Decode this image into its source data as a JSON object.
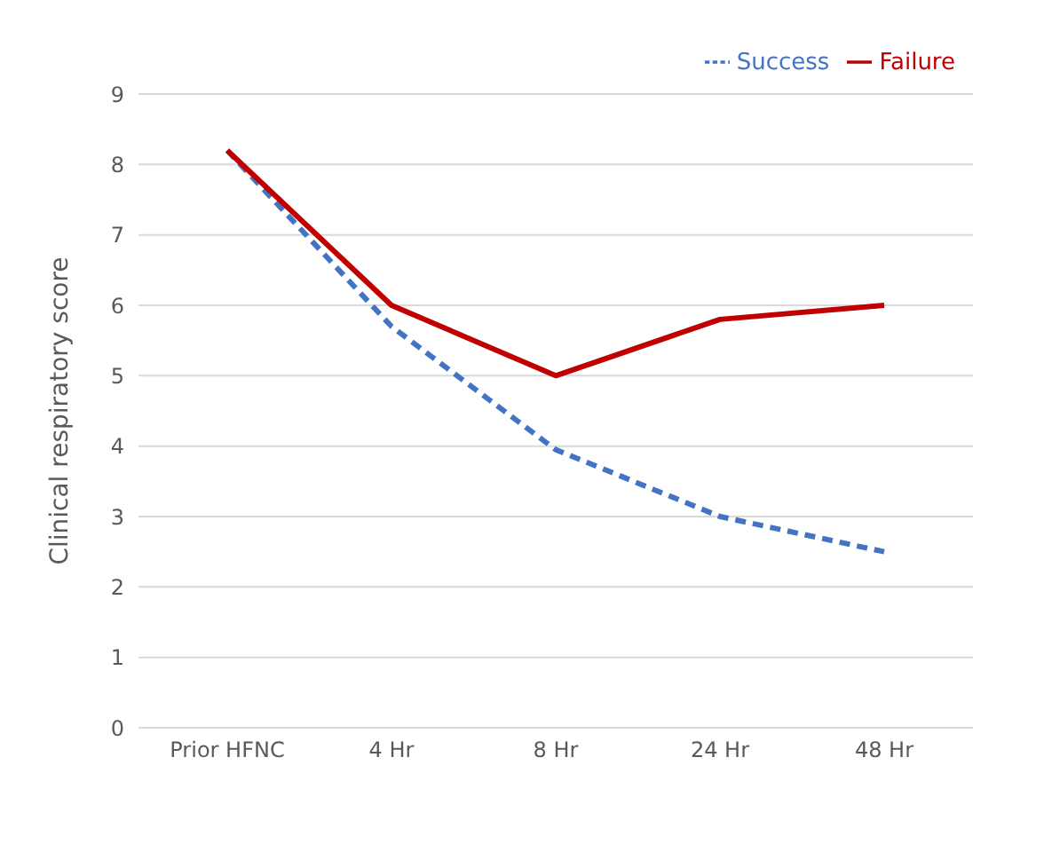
{
  "chart_data": {
    "type": "line",
    "ylabel": "Clinical respiratory score",
    "categories": [
      "Prior HFNC",
      "4 Hr",
      "8 Hr",
      "24 Hr",
      "48 Hr"
    ],
    "series": [
      {
        "name": "Success",
        "color": "#4472c4",
        "line_style": "dashed",
        "values": [
          8.2,
          5.7,
          3.95,
          3.0,
          2.5
        ]
      },
      {
        "name": "Failure",
        "color": "#c00000",
        "line_style": "solid",
        "values": [
          8.2,
          6.0,
          5.0,
          5.8,
          6.0
        ]
      }
    ],
    "ylim": [
      0,
      9
    ],
    "yticks": [
      0,
      1,
      2,
      3,
      4,
      5,
      6,
      7,
      8,
      9
    ],
    "grid": "y",
    "legend": "top right",
    "marker": "none"
  }
}
